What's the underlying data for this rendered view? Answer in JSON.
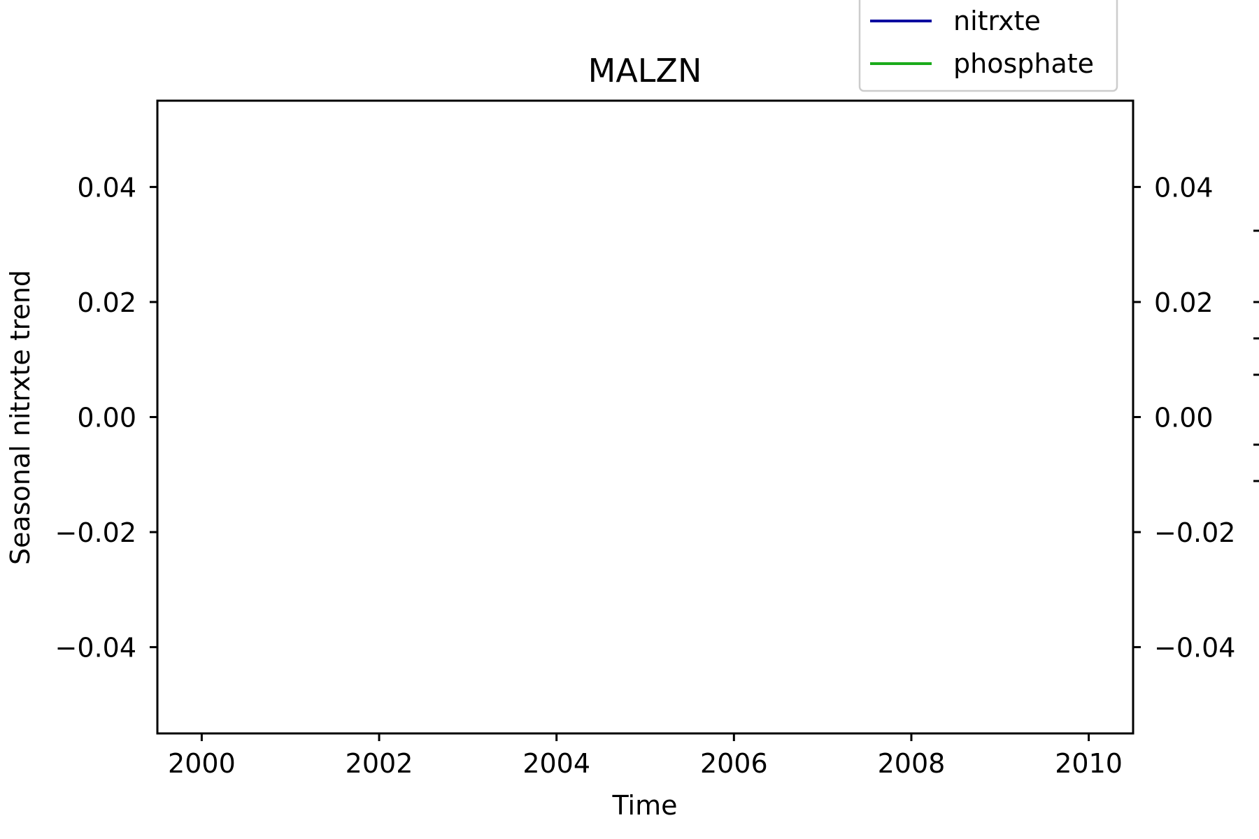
{
  "chart_data": {
    "type": "line",
    "title": "MALZN",
    "xlabel": "Time",
    "ylabel": "Seasonal nitrxte trend",
    "xlim": [
      1999.5,
      2010.5
    ],
    "ylim": [
      -0.055,
      0.055
    ],
    "x_ticks": [
      2000,
      2002,
      2004,
      2006,
      2008,
      2010
    ],
    "x_tick_labels": [
      "2000",
      "2002",
      "2004",
      "2006",
      "2008",
      "2010"
    ],
    "y_ticks": [
      0.04,
      0.02,
      0.0,
      -0.02,
      -0.04
    ],
    "y_tick_labels": [
      "0.04",
      "0.02",
      "0.00",
      "−0.02",
      "−0.04"
    ],
    "right_y_tick_labels": [
      "0.04",
      "0.02",
      "0.00",
      "−0.02",
      "−0.04"
    ],
    "legend_position": "top-right",
    "series": [
      {
        "name": "nitrxte",
        "color": "#0a0aa0",
        "x": [],
        "y": []
      },
      {
        "name": "phosphate",
        "color": "#1aab1a",
        "x": [],
        "y": []
      }
    ],
    "grid": false
  }
}
